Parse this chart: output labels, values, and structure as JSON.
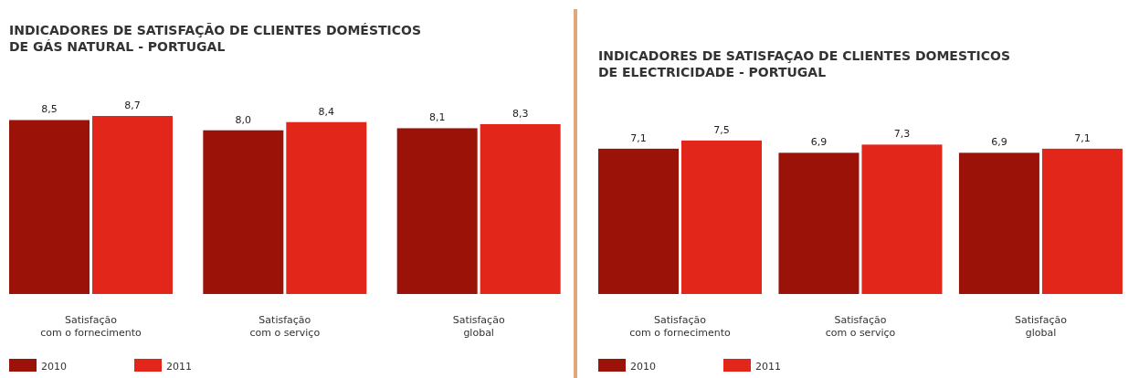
{
  "chart_data": [
    {
      "type": "bar",
      "title": "INDICADORES DE SATISFAÇÃO DE CLIENTES DOMÉSTICOS\nDE GÁS NATURAL - PORTUGAL",
      "categories": [
        "Satisfação\ncom o fornecimento",
        "Satisfação\ncom o serviço",
        "Satisfação\nglobal"
      ],
      "legend": "bottom left",
      "series": [
        {
          "name": "2010",
          "color": "#9b1208",
          "values": [
            8.5,
            8.0,
            8.1
          ],
          "value_labels": [
            "8,5",
            "8,0",
            "8,1"
          ]
        },
        {
          "name": "2011",
          "color": "#e3261a",
          "values": [
            8.7,
            8.4,
            8.3
          ],
          "value_labels": [
            "8,7",
            "8,4",
            "8,3"
          ]
        }
      ]
    },
    {
      "type": "bar",
      "title": "INDICADORES DE SATISFAÇAO DE CLIENTES DOMESTICOS\nDE ELECTRICIDADE - PORTUGAL",
      "categories": [
        "Satisfação\ncom o fornecimento",
        "Satisfação\ncom o serviço",
        "Satisfação\nglobal"
      ],
      "legend": "bottom left",
      "series": [
        {
          "name": "2010",
          "color": "#9b1208",
          "values": [
            7.1,
            6.9,
            6.9
          ],
          "value_labels": [
            "7,1",
            "6,9",
            "6,9"
          ]
        },
        {
          "name": "2011",
          "color": "#e3261a",
          "values": [
            7.5,
            7.3,
            7.1
          ],
          "value_labels": [
            "7,5",
            "7,3",
            "7,1"
          ]
        }
      ]
    }
  ]
}
